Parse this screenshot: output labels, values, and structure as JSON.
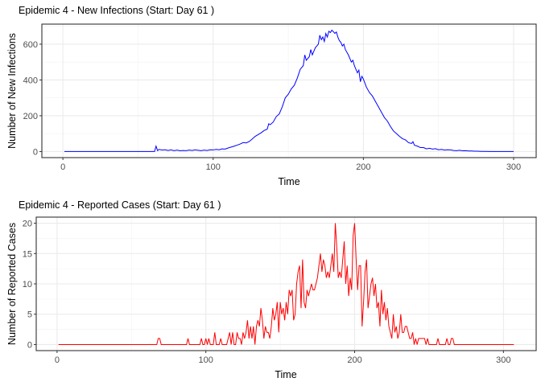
{
  "chart_data": [
    {
      "type": "line",
      "title": "Epidemic 4 - New Infections (Start: Day 61 )",
      "xlabel": "Time",
      "ylabel": "Number of New Infections",
      "xlim": [
        -14,
        315
      ],
      "ylim": [
        -34,
        712
      ],
      "xticks": [
        0,
        100,
        200,
        300
      ],
      "yticks": [
        0,
        200,
        400,
        600
      ],
      "grid": true,
      "color": "#0000ff",
      "points": [
        [
          1,
          0
        ],
        [
          60,
          0
        ],
        [
          61,
          0
        ],
        [
          62,
          30
        ],
        [
          63,
          5
        ],
        [
          64,
          12
        ],
        [
          66,
          8
        ],
        [
          68,
          10
        ],
        [
          70,
          6
        ],
        [
          72,
          9
        ],
        [
          74,
          5
        ],
        [
          76,
          8
        ],
        [
          78,
          4
        ],
        [
          80,
          6
        ],
        [
          82,
          5
        ],
        [
          84,
          8
        ],
        [
          86,
          6
        ],
        [
          88,
          9
        ],
        [
          90,
          7
        ],
        [
          92,
          5
        ],
        [
          94,
          8
        ],
        [
          96,
          6
        ],
        [
          98,
          10
        ],
        [
          100,
          9
        ],
        [
          102,
          12
        ],
        [
          104,
          10
        ],
        [
          106,
          15
        ],
        [
          108,
          14
        ],
        [
          110,
          20
        ],
        [
          112,
          25
        ],
        [
          114,
          30
        ],
        [
          116,
          36
        ],
        [
          118,
          42
        ],
        [
          120,
          50
        ],
        [
          122,
          48
        ],
        [
          124,
          56
        ],
        [
          126,
          70
        ],
        [
          128,
          85
        ],
        [
          130,
          95
        ],
        [
          132,
          105
        ],
        [
          134,
          118
        ],
        [
          136,
          125
        ],
        [
          137,
          155
        ],
        [
          138,
          150
        ],
        [
          140,
          165
        ],
        [
          142,
          195
        ],
        [
          144,
          210
        ],
        [
          146,
          250
        ],
        [
          148,
          300
        ],
        [
          150,
          320
        ],
        [
          152,
          350
        ],
        [
          154,
          370
        ],
        [
          156,
          410
        ],
        [
          158,
          460
        ],
        [
          160,
          480
        ],
        [
          161,
          540
        ],
        [
          162,
          510
        ],
        [
          164,
          530
        ],
        [
          165,
          570
        ],
        [
          166,
          540
        ],
        [
          168,
          580
        ],
        [
          170,
          600
        ],
        [
          171,
          650
        ],
        [
          172,
          625
        ],
        [
          173,
          640
        ],
        [
          174,
          615
        ],
        [
          175,
          660
        ],
        [
          176,
          640
        ],
        [
          177,
          672
        ],
        [
          178,
          665
        ],
        [
          179,
          678
        ],
        [
          180,
          670
        ],
        [
          181,
          660
        ],
        [
          182,
          668
        ],
        [
          183,
          640
        ],
        [
          184,
          620
        ],
        [
          185,
          610
        ],
        [
          186,
          590
        ],
        [
          187,
          600
        ],
        [
          188,
          570
        ],
        [
          190,
          540
        ],
        [
          192,
          500
        ],
        [
          193,
          510
        ],
        [
          194,
          480
        ],
        [
          196,
          440
        ],
        [
          197,
          455
        ],
        [
          198,
          390
        ],
        [
          199,
          420
        ],
        [
          200,
          405
        ],
        [
          202,
          360
        ],
        [
          204,
          330
        ],
        [
          206,
          310
        ],
        [
          208,
          280
        ],
        [
          210,
          250
        ],
        [
          212,
          220
        ],
        [
          214,
          190
        ],
        [
          216,
          170
        ],
        [
          218,
          140
        ],
        [
          220,
          115
        ],
        [
          222,
          100
        ],
        [
          224,
          85
        ],
        [
          226,
          72
        ],
        [
          228,
          65
        ],
        [
          230,
          50
        ],
        [
          232,
          45
        ],
        [
          233,
          55
        ],
        [
          234,
          35
        ],
        [
          236,
          30
        ],
        [
          238,
          22
        ],
        [
          240,
          22
        ],
        [
          242,
          15
        ],
        [
          244,
          18
        ],
        [
          246,
          14
        ],
        [
          248,
          16
        ],
        [
          250,
          10
        ],
        [
          252,
          12
        ],
        [
          254,
          8
        ],
        [
          256,
          10
        ],
        [
          258,
          9
        ],
        [
          260,
          6
        ],
        [
          262,
          5
        ],
        [
          264,
          7
        ],
        [
          266,
          4
        ],
        [
          268,
          5
        ],
        [
          270,
          3
        ],
        [
          272,
          3
        ],
        [
          274,
          2
        ],
        [
          276,
          2
        ],
        [
          278,
          1
        ],
        [
          280,
          1
        ],
        [
          285,
          0
        ],
        [
          300,
          0
        ]
      ]
    },
    {
      "type": "line",
      "title": "Epidemic 4 - Reported Cases (Start: Day 61 )",
      "xlabel": "Time",
      "ylabel": "Number of Reported Cases",
      "xlim": [
        -14,
        322
      ],
      "ylim": [
        -1,
        21
      ],
      "xticks": [
        0,
        100,
        200,
        300
      ],
      "yticks": [
        0,
        5,
        10,
        15,
        20
      ],
      "grid": true,
      "color": "#ff0000",
      "points": [
        [
          1,
          0
        ],
        [
          67,
          0
        ],
        [
          68,
          1
        ],
        [
          69,
          1
        ],
        [
          70,
          0
        ],
        [
          87,
          0
        ],
        [
          88,
          1
        ],
        [
          89,
          0
        ],
        [
          96,
          0
        ],
        [
          97,
          1
        ],
        [
          98,
          0
        ],
        [
          99,
          0
        ],
        [
          100,
          1
        ],
        [
          101,
          0
        ],
        [
          102,
          1
        ],
        [
          103,
          0
        ],
        [
          105,
          0
        ],
        [
          106,
          2
        ],
        [
          107,
          0
        ],
        [
          109,
          0
        ],
        [
          110,
          1
        ],
        [
          111,
          0
        ],
        [
          114,
          0
        ],
        [
          115,
          1
        ],
        [
          116,
          2
        ],
        [
          117,
          0
        ],
        [
          118,
          2
        ],
        [
          119,
          0
        ],
        [
          120,
          0
        ],
        [
          121,
          2
        ],
        [
          122,
          1
        ],
        [
          123,
          1
        ],
        [
          124,
          0
        ],
        [
          125,
          2
        ],
        [
          126,
          1
        ],
        [
          127,
          2
        ],
        [
          128,
          4
        ],
        [
          129,
          1
        ],
        [
          130,
          3
        ],
        [
          131,
          1
        ],
        [
          132,
          3
        ],
        [
          133,
          0
        ],
        [
          134,
          3
        ],
        [
          135,
          4
        ],
        [
          136,
          3
        ],
        [
          137,
          6
        ],
        [
          138,
          4
        ],
        [
          139,
          1
        ],
        [
          140,
          3
        ],
        [
          141,
          2
        ],
        [
          142,
          2
        ],
        [
          143,
          1
        ],
        [
          144,
          3
        ],
        [
          145,
          6
        ],
        [
          146,
          4
        ],
        [
          147,
          5
        ],
        [
          148,
          7
        ],
        [
          149,
          2
        ],
        [
          150,
          7
        ],
        [
          151,
          5
        ],
        [
          152,
          6
        ],
        [
          153,
          4
        ],
        [
          154,
          7
        ],
        [
          155,
          5
        ],
        [
          156,
          9
        ],
        [
          157,
          8
        ],
        [
          158,
          9
        ],
        [
          159,
          4
        ],
        [
          160,
          5
        ],
        [
          161,
          10
        ],
        [
          162,
          12
        ],
        [
          163,
          13
        ],
        [
          164,
          6
        ],
        [
          165,
          14
        ],
        [
          166,
          7
        ],
        [
          167,
          6
        ],
        [
          168,
          9
        ],
        [
          169,
          8
        ],
        [
          170,
          9
        ],
        [
          171,
          10
        ],
        [
          172,
          9
        ],
        [
          173,
          9
        ],
        [
          174,
          10
        ],
        [
          175,
          11
        ],
        [
          176,
          13
        ],
        [
          177,
          15
        ],
        [
          178,
          12
        ],
        [
          179,
          14
        ],
        [
          180,
          13
        ],
        [
          181,
          11
        ],
        [
          182,
          12
        ],
        [
          183,
          11
        ],
        [
          184,
          13
        ],
        [
          185,
          15
        ],
        [
          186,
          12
        ],
        [
          187,
          20
        ],
        [
          188,
          16
        ],
        [
          189,
          11
        ],
        [
          190,
          12
        ],
        [
          191,
          11
        ],
        [
          192,
          14
        ],
        [
          193,
          17
        ],
        [
          194,
          10
        ],
        [
          195,
          13
        ],
        [
          196,
          8
        ],
        [
          197,
          11
        ],
        [
          198,
          9
        ],
        [
          199,
          18
        ],
        [
          200,
          20
        ],
        [
          201,
          14
        ],
        [
          202,
          9
        ],
        [
          203,
          13
        ],
        [
          204,
          13
        ],
        [
          205,
          3
        ],
        [
          206,
          7
        ],
        [
          207,
          12
        ],
        [
          208,
          14
        ],
        [
          209,
          6
        ],
        [
          210,
          8
        ],
        [
          211,
          10
        ],
        [
          212,
          11
        ],
        [
          213,
          8
        ],
        [
          214,
          10
        ],
        [
          215,
          6
        ],
        [
          216,
          7
        ],
        [
          217,
          3
        ],
        [
          218,
          9
        ],
        [
          219,
          5
        ],
        [
          220,
          7
        ],
        [
          221,
          4
        ],
        [
          222,
          6
        ],
        [
          223,
          3
        ],
        [
          224,
          2
        ],
        [
          225,
          1
        ],
        [
          226,
          5
        ],
        [
          227,
          2
        ],
        [
          228,
          3
        ],
        [
          229,
          1
        ],
        [
          230,
          2
        ],
        [
          231,
          5
        ],
        [
          232,
          2
        ],
        [
          233,
          2
        ],
        [
          234,
          3
        ],
        [
          235,
          3
        ],
        [
          236,
          2
        ],
        [
          237,
          1
        ],
        [
          238,
          1
        ],
        [
          239,
          2
        ],
        [
          240,
          0
        ],
        [
          241,
          1
        ],
        [
          242,
          0
        ],
        [
          243,
          1
        ],
        [
          244,
          1
        ],
        [
          245,
          1
        ],
        [
          246,
          1
        ],
        [
          247,
          1
        ],
        [
          248,
          0
        ],
        [
          249,
          1
        ],
        [
          250,
          0
        ],
        [
          255,
          0
        ],
        [
          256,
          1
        ],
        [
          257,
          0
        ],
        [
          261,
          0
        ],
        [
          262,
          1
        ],
        [
          263,
          0
        ],
        [
          264,
          0
        ],
        [
          265,
          1
        ],
        [
          266,
          1
        ],
        [
          267,
          0
        ],
        [
          307,
          0
        ]
      ]
    }
  ]
}
